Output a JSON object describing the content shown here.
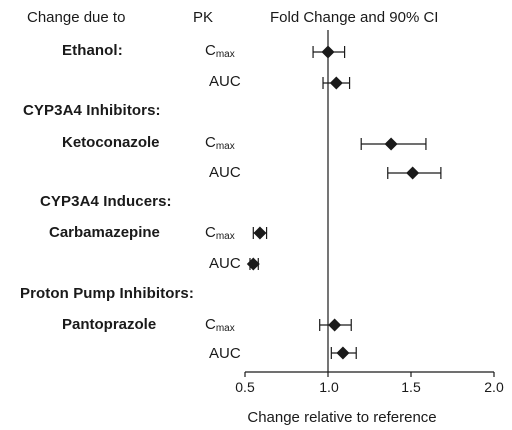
{
  "headers": {
    "col1": "Change due to",
    "col2": "PK",
    "col3": "Fold Change and 90% CI"
  },
  "chart_data": {
    "type": "scatter",
    "title": "",
    "xlabel": "Change relative to reference",
    "ylabel": "",
    "xlim": [
      0.5,
      2.0
    ],
    "xticks": [
      "0.5",
      "1.0",
      "1.5",
      "2.0"
    ],
    "reference_line": 1.0,
    "grid": false,
    "groups": [
      {
        "label": "Ethanol:",
        "drug": ""
      },
      {
        "label": "CYP3A4 Inhibitors:",
        "drug": "Ketoconazole"
      },
      {
        "label": "CYP3A4 Inducers:",
        "drug": "Carbamazepine"
      },
      {
        "label": "Proton Pump Inhibitors:",
        "drug": "Pantoprazole"
      }
    ],
    "rows": [
      {
        "group": 0,
        "pk": "C",
        "pk_sub": "max",
        "value": 1.0,
        "lower": 0.91,
        "upper": 1.1
      },
      {
        "group": 0,
        "pk": "AUC",
        "pk_sub": "",
        "value": 1.05,
        "lower": 0.97,
        "upper": 1.13
      },
      {
        "group": 1,
        "pk": "C",
        "pk_sub": "max",
        "value": 1.38,
        "lower": 1.2,
        "upper": 1.59
      },
      {
        "group": 1,
        "pk": "AUC",
        "pk_sub": "",
        "value": 1.51,
        "lower": 1.36,
        "upper": 1.68
      },
      {
        "group": 2,
        "pk": "C",
        "pk_sub": "max",
        "value": 0.59,
        "lower": 0.55,
        "upper": 0.63
      },
      {
        "group": 2,
        "pk": "AUC",
        "pk_sub": "",
        "value": 0.55,
        "lower": 0.53,
        "upper": 0.58
      },
      {
        "group": 3,
        "pk": "C",
        "pk_sub": "max",
        "value": 1.04,
        "lower": 0.95,
        "upper": 1.14
      },
      {
        "group": 3,
        "pk": "AUC",
        "pk_sub": "",
        "value": 1.09,
        "lower": 1.02,
        "upper": 1.17
      }
    ]
  }
}
